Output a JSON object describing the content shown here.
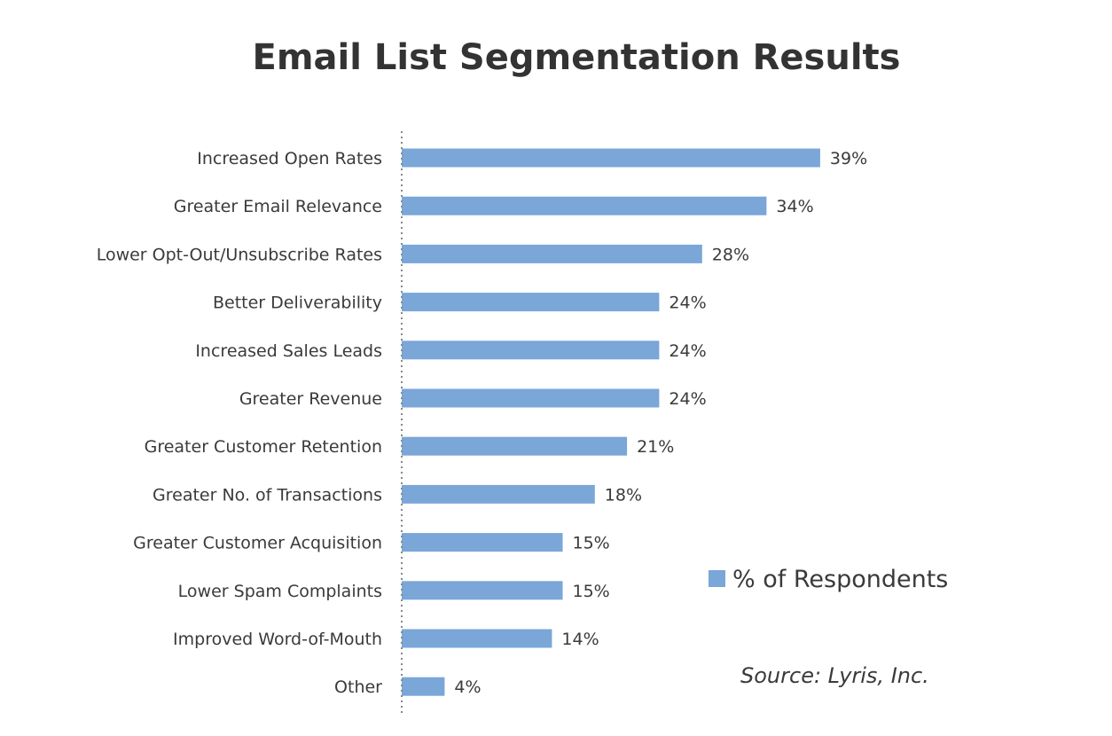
{
  "chart_data": {
    "type": "bar",
    "orientation": "horizontal",
    "title": "Email List Segmentation Results",
    "categories": [
      "Increased Open Rates",
      "Greater Email Relevance",
      "Lower Opt-Out/Unsubscribe Rates",
      "Better Deliverability",
      "Increased Sales Leads",
      "Greater Revenue",
      "Greater Customer Retention",
      "Greater No. of Transactions",
      "Greater Customer Acquisition",
      "Lower Spam Complaints",
      "Improved Word-of-Mouth",
      "Other"
    ],
    "series": [
      {
        "name": "% of Respondents",
        "values": [
          39,
          34,
          28,
          24,
          24,
          24,
          21,
          18,
          15,
          15,
          14,
          4
        ],
        "data_labels": [
          "39%",
          "34%",
          "28%",
          "24%",
          "24%",
          "24%",
          "21%",
          "18%",
          "15%",
          "15%",
          "14%",
          "4%"
        ],
        "color": "#7aa6d8"
      }
    ],
    "xlim": [
      0,
      40
    ],
    "grid": false,
    "legend_position": "right",
    "axis_line_color": "#888888",
    "source": "Source: Lyris, Inc."
  }
}
